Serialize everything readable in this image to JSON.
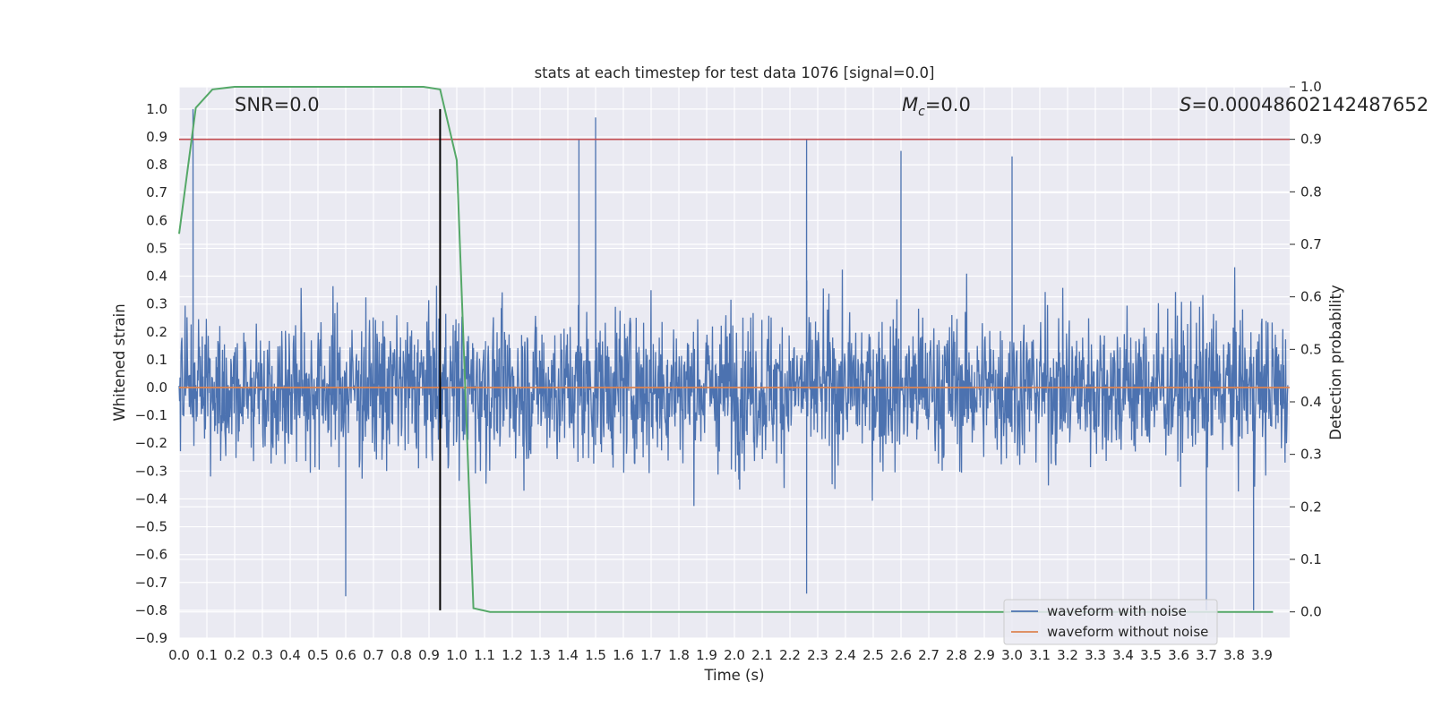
{
  "chart_data": {
    "type": "line",
    "title": "stats at each timestep for test data 1076 [signal=0.0]",
    "xlabel": "Time (s)",
    "ylabel": "Whitened strain",
    "ylabel_right": "Detection probability",
    "xlim": [
      0.0,
      4.0
    ],
    "ylim": [
      -0.9,
      1.08
    ],
    "ylim_right": [
      -0.05,
      1.0
    ],
    "x_ticks": [
      "0.0",
      "0.1",
      "0.2",
      "0.3",
      "0.4",
      "0.5",
      "0.6",
      "0.7",
      "0.8",
      "0.9",
      "1.0",
      "1.1",
      "1.2",
      "1.3",
      "1.4",
      "1.5",
      "1.6",
      "1.7",
      "1.8",
      "1.9",
      "2.0",
      "2.1",
      "2.2",
      "2.3",
      "2.4",
      "2.5",
      "2.6",
      "2.7",
      "2.8",
      "2.9",
      "3.0",
      "3.1",
      "3.2",
      "3.3",
      "3.4",
      "3.5",
      "3.6",
      "3.7",
      "3.8",
      "3.9"
    ],
    "y_ticks": [
      "1.0",
      "0.9",
      "0.8",
      "0.7",
      "0.6",
      "0.5",
      "0.4",
      "0.3",
      "0.2",
      "0.1",
      "0.0",
      "−0.1",
      "−0.2",
      "−0.3",
      "−0.4",
      "−0.5",
      "−0.6",
      "−0.7",
      "−0.8",
      "−0.9"
    ],
    "y_right_ticks": [
      "1.0",
      "0.9",
      "0.8",
      "0.7",
      "0.6",
      "0.5",
      "0.4",
      "0.3",
      "0.2",
      "0.1",
      "0.0"
    ],
    "grid": true,
    "legend_position": "lower right",
    "annotations": {
      "snr": "SNR=0.0",
      "mc_symbol": "M",
      "mc_sub": "c",
      "mc_value": "=0.0",
      "s_symbol": "S",
      "s_value": "=0.00048602142487652"
    },
    "series": [
      {
        "name": "waveform with noise",
        "color": "#4c72b0",
        "kind": "noise",
        "amplitude_envelope": [
          -0.8,
          1.0
        ],
        "notable_peaks": [
          {
            "x": 0.05,
            "y": 1.0
          },
          {
            "x": 1.44,
            "y": 0.89
          },
          {
            "x": 1.5,
            "y": 0.97
          },
          {
            "x": 2.26,
            "y": 0.89
          },
          {
            "x": 2.6,
            "y": 0.85
          },
          {
            "x": 3.0,
            "y": 0.83
          },
          {
            "x": 0.6,
            "y": -0.75
          },
          {
            "x": 2.26,
            "y": -0.74
          },
          {
            "x": 3.7,
            "y": -0.8
          },
          {
            "x": 3.87,
            "y": -0.8
          }
        ]
      },
      {
        "name": "waveform without noise",
        "color": "#dd8452",
        "kind": "flat",
        "value": 0.0
      },
      {
        "name": "detection probability",
        "color": "#55a868",
        "axis": "right",
        "x": [
          0.0,
          0.06,
          0.12,
          0.2,
          0.4,
          0.6,
          0.8,
          0.88,
          0.94,
          1.0,
          1.06,
          1.12,
          1.5,
          2.0,
          3.0,
          3.94
        ],
        "y": [
          0.72,
          0.96,
          0.995,
          1.0,
          1.0,
          1.0,
          1.0,
          1.0,
          0.995,
          0.86,
          0.007,
          0.0,
          0.0,
          0.0,
          0.0,
          0.0
        ]
      }
    ],
    "threshold_right": {
      "value": 0.9,
      "color": "#c44e52"
    },
    "vertical_marker": {
      "x": 0.94,
      "color": "#000000"
    }
  }
}
